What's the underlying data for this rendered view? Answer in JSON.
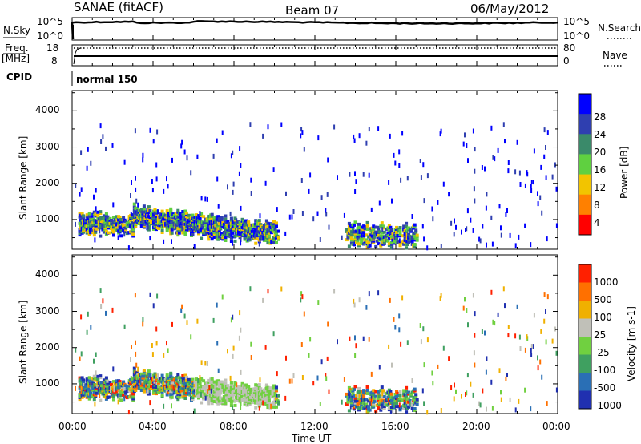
{
  "header": {
    "station": "SANAE (fitACF)",
    "beam": "Beam 07",
    "date": "06/May/2012"
  },
  "top_panels": {
    "nsky_label": "N.Sky",
    "nsky_ticks": [
      "10^5",
      "10^0"
    ],
    "nsearch_label": "N.Search",
    "nsearch_ticks": [
      "10^5",
      "10^0"
    ],
    "freq_label_line1": "Freq.",
    "freq_label_line2": "[MHz]",
    "freq_ticks": [
      "18",
      "8"
    ],
    "nave_label": "Nave",
    "nave_ticks": [
      "80",
      "0"
    ],
    "cpid_label": "CPID",
    "cpid_value": "normal 150"
  },
  "chart_data": [
    {
      "type": "heatmap",
      "name": "power",
      "ylabel": "Slant Range [km]",
      "yticks": [
        "4000",
        "3000",
        "2000",
        "1000"
      ],
      "colorbar_label": "Power [dB]",
      "colorbar_ticks": [
        "28",
        "24",
        "20",
        "16",
        "12",
        "8",
        "4"
      ],
      "colors": [
        "#0000ff",
        "#2f3fb0",
        "#3a8a6a",
        "#5fd040",
        "#f2c400",
        "#ff8000",
        "#ff0000"
      ],
      "x_range_hours": [
        0,
        24
      ],
      "y_range_km": [
        180,
        4560
      ]
    },
    {
      "type": "heatmap",
      "name": "velocity",
      "ylabel": "Slant Range [km]",
      "yticks": [
        "4000",
        "3000",
        "2000",
        "1000"
      ],
      "colorbar_label": "Velocity [m s-1]",
      "colorbar_ticks": [
        "1000",
        "500",
        "100",
        "25",
        "-25",
        "-100",
        "-500",
        "-1000"
      ],
      "colors": [
        "#2030b0",
        "#2a6fb5",
        "#3fa060",
        "#70d040",
        "#c0c0b8",
        "#f0b000",
        "#ff7000",
        "#ff2000"
      ],
      "x_range_hours": [
        0,
        24
      ],
      "y_range_km": [
        180,
        4560
      ]
    }
  ],
  "xaxis": {
    "ticks": [
      "00:00",
      "04:00",
      "08:00",
      "12:00",
      "16:00",
      "20:00",
      "00:00"
    ],
    "label": "Time UT"
  }
}
